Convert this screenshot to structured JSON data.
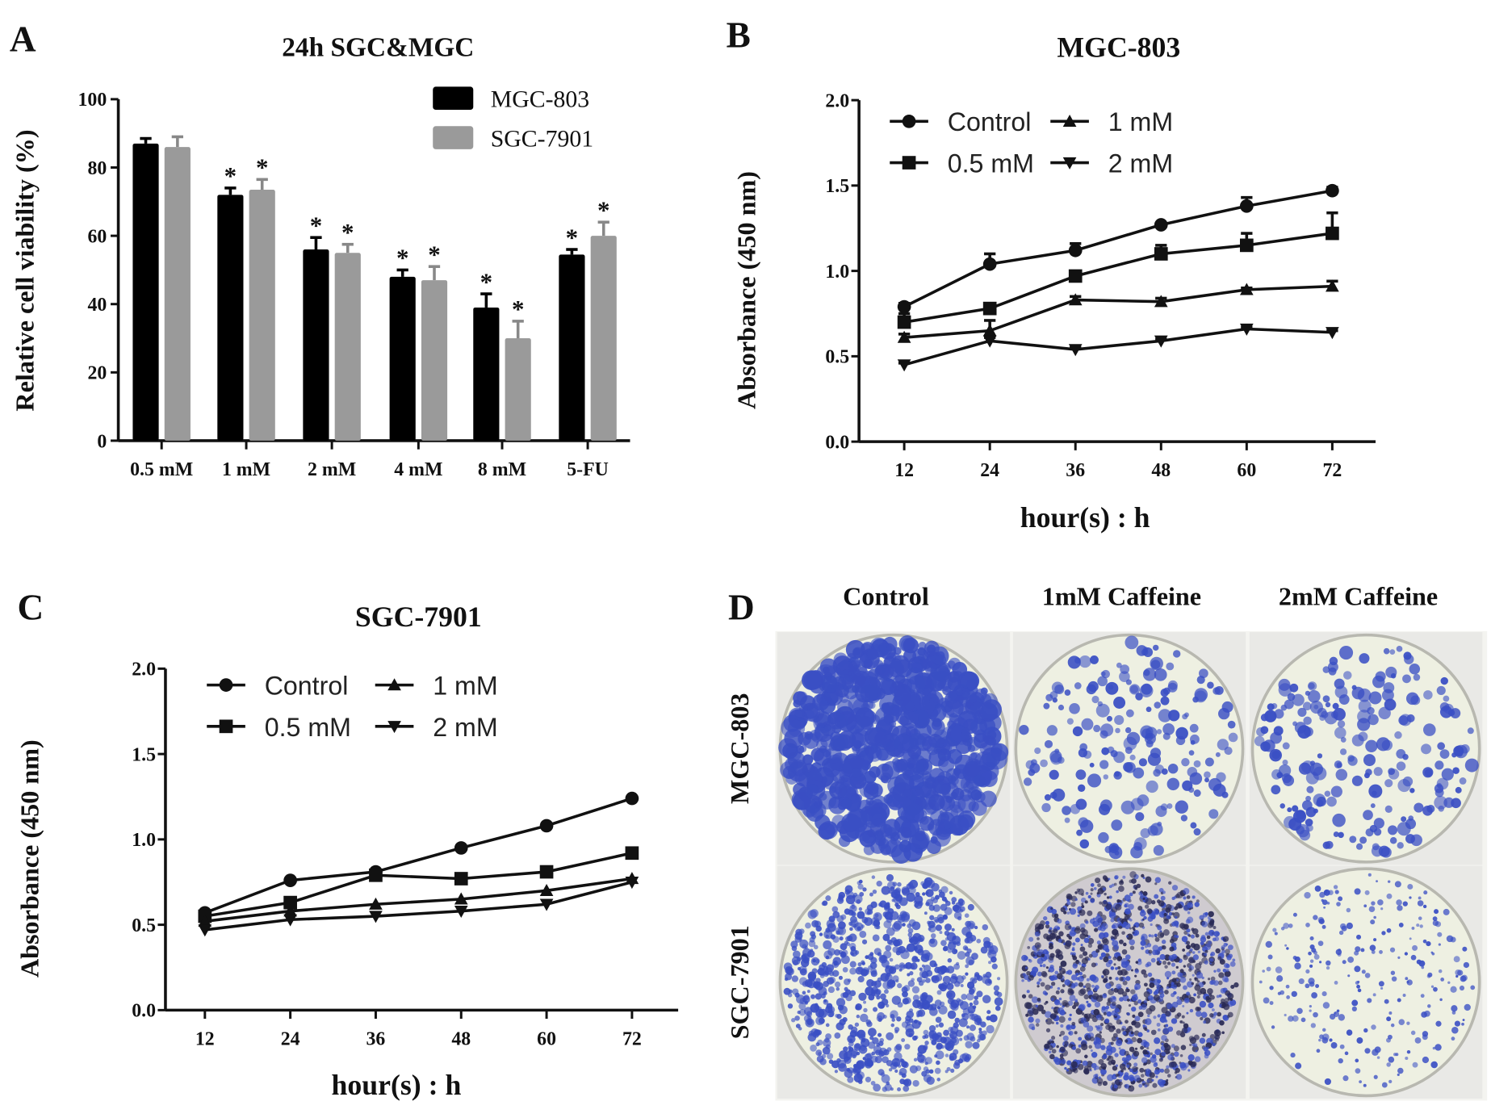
{
  "panels": {
    "a": "A",
    "b": "B",
    "c": "C",
    "d": "D"
  },
  "chart_data": [
    {
      "type": "bar",
      "title": "24h SGC&MGC",
      "xlabel": "",
      "ylabel": "Relative  cell viability (%)",
      "ylim": [
        0,
        100
      ],
      "yticks": [
        "0",
        "20",
        "40",
        "60",
        "80",
        "100"
      ],
      "categories": [
        "0.5 mM",
        "1 mM",
        "2 mM",
        "4 mM",
        "8 mM",
        "5-FU"
      ],
      "legend": "top-right",
      "series": [
        {
          "name": "MGC-803",
          "color": "#000000",
          "values": [
            87,
            72,
            56,
            48,
            39,
            54.5
          ],
          "errors": [
            1.5,
            2,
            3.5,
            2,
            4,
            1.5
          ],
          "significant": [
            false,
            true,
            true,
            true,
            true,
            true
          ]
        },
        {
          "name": "SGC-7901",
          "color": "#9a9a9a",
          "values": [
            86,
            73.5,
            55,
            47,
            30,
            60
          ],
          "errors": [
            3,
            3,
            2.5,
            4,
            5,
            4
          ],
          "significant": [
            false,
            true,
            true,
            true,
            true,
            true
          ]
        }
      ],
      "significance_marker": "*"
    },
    {
      "type": "line",
      "title": "MGC-803",
      "xlabel": "hour(s) : h",
      "ylabel": "Absorbance  (450 nm)",
      "x": [
        12,
        24,
        36,
        48,
        60,
        72
      ],
      "ylim": [
        0,
        2.0
      ],
      "yticks": [
        "0.0",
        "0.5",
        "1.0",
        "1.5",
        "2.0"
      ],
      "legend": "top-left",
      "series": [
        {
          "name": "Control",
          "marker": "circle",
          "values": [
            0.79,
            1.04,
            1.12,
            1.27,
            1.38,
            1.47
          ],
          "errors": [
            0.02,
            0.06,
            0.04,
            0.01,
            0.05,
            0.02
          ]
        },
        {
          "name": "0.5 mM",
          "marker": "square",
          "values": [
            0.7,
            0.78,
            0.97,
            1.1,
            1.15,
            1.22
          ],
          "errors": [
            0.05,
            0.03,
            0.02,
            0.05,
            0.07,
            0.12
          ]
        },
        {
          "name": "1 mM",
          "marker": "triangle-up",
          "values": [
            0.61,
            0.65,
            0.83,
            0.82,
            0.89,
            0.91
          ],
          "errors": [
            0.02,
            0.06,
            0.02,
            0.02,
            0.01,
            0.03
          ]
        },
        {
          "name": "2 mM",
          "marker": "triangle-down",
          "values": [
            0.45,
            0.59,
            0.54,
            0.59,
            0.66,
            0.64
          ],
          "errors": [
            0.01,
            0.02,
            0.01,
            0.01,
            0.01,
            0.01
          ]
        }
      ]
    },
    {
      "type": "line",
      "title": "SGC-7901",
      "xlabel": "hour(s) : h",
      "ylabel": "Absorbance  (450 nm)",
      "x": [
        12,
        24,
        36,
        48,
        60,
        72
      ],
      "ylim": [
        0,
        2.0
      ],
      "yticks": [
        "0.0",
        "0.5",
        "1.0",
        "1.5",
        "2.0"
      ],
      "legend": "top-left",
      "series": [
        {
          "name": "Control",
          "marker": "circle",
          "values": [
            0.57,
            0.76,
            0.81,
            0.95,
            1.08,
            1.24
          ]
        },
        {
          "name": "0.5 mM",
          "marker": "square",
          "values": [
            0.55,
            0.63,
            0.79,
            0.77,
            0.81,
            0.92
          ]
        },
        {
          "name": "1 mM",
          "marker": "triangle-up",
          "values": [
            0.52,
            0.58,
            0.62,
            0.65,
            0.7,
            0.77
          ]
        },
        {
          "name": "2 mM",
          "marker": "triangle-down",
          "values": [
            0.47,
            0.53,
            0.55,
            0.58,
            0.62,
            0.75
          ]
        }
      ]
    }
  ],
  "colony_panel": {
    "columns": [
      "Control",
      "1mM Caffeine",
      "2mM Caffeine"
    ],
    "rows": [
      "MGC-803",
      "SGC-7901"
    ],
    "colony_color": "#3a4fc4",
    "dish_color": "#eef0e2"
  }
}
